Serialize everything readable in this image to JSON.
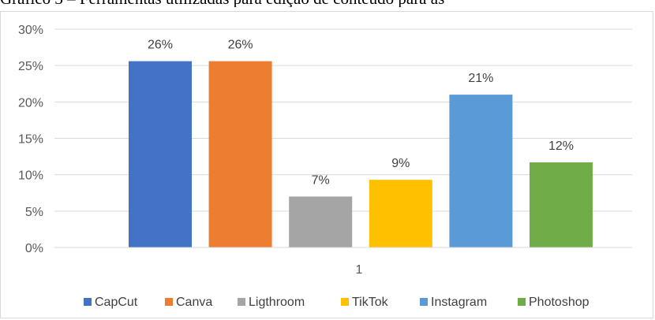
{
  "caption": "Gráfico 3 – Ferramentas utilizadas para edição de conteúdo para as",
  "chart_data": {
    "type": "bar",
    "categories": [
      "1"
    ],
    "series": [
      {
        "name": "CapCut",
        "values": [
          26
        ],
        "color": "#4472c4"
      },
      {
        "name": "Canva",
        "values": [
          26
        ],
        "color": "#ed7d31"
      },
      {
        "name": "Ligthroom",
        "values": [
          7
        ],
        "color": "#a5a5a5"
      },
      {
        "name": "TikTok",
        "values": [
          9
        ],
        "color": "#ffc000"
      },
      {
        "name": "Instagram",
        "values": [
          21
        ],
        "color": "#5b9bd5"
      },
      {
        "name": "Photoshop",
        "values": [
          12
        ],
        "color": "#70ad47"
      }
    ],
    "bar_heights": [
      25.6,
      25.6,
      7.0,
      9.3,
      21.0,
      11.7
    ],
    "data_labels": [
      "26%",
      "26%",
      "7%",
      "9%",
      "21%",
      "12%"
    ],
    "y_ticks": [
      "0%",
      "5%",
      "10%",
      "15%",
      "20%",
      "25%",
      "30%"
    ],
    "ylim": [
      0,
      30
    ],
    "grid": true,
    "legend": "bottom"
  }
}
